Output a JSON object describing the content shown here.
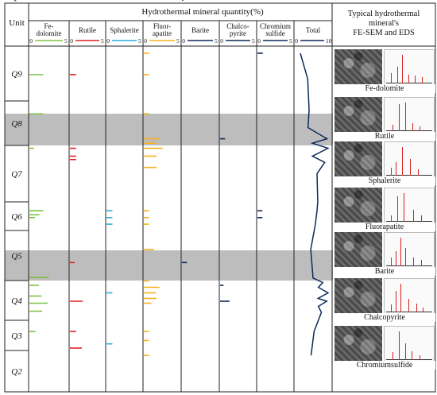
{
  "chart_data": {
    "type": "bar",
    "title": "Hydrothermal mineral quantity(%)",
    "unit_header": "Unit",
    "right_header": [
      "Typical hydrothermal",
      "mineral's",
      "FE-SEM and EDS"
    ],
    "units": [
      "Q9",
      "Q8",
      "Q7",
      "Q6",
      "Q5",
      "Q4",
      "Q3",
      "Q2",
      "Q1"
    ],
    "highlighted_units": [
      "Q8",
      "Q4"
    ],
    "columns": [
      {
        "name": "Fe-dolomite",
        "name_lines": [
          "Fe-",
          "dolomite"
        ],
        "scale": [
          "0",
          "5"
        ],
        "color": "#7dc242",
        "marks": [
          {
            "depth": 0.52,
            "value": 2.5
          },
          {
            "depth": 1.29,
            "value": 2.5
          },
          {
            "depth": 2.05,
            "value": 0.8
          },
          {
            "depth": 3.31,
            "value": 2.5
          },
          {
            "depth": 3.45,
            "value": 1.8
          },
          {
            "depth": 3.55,
            "value": 1.0
          },
          {
            "depth": 4.94,
            "value": 3.5
          },
          {
            "depth": 5.12,
            "value": 1.7
          },
          {
            "depth": 5.39,
            "value": 2.2
          },
          {
            "depth": 5.57,
            "value": 3.3
          },
          {
            "depth": 5.77,
            "value": 2.3
          },
          {
            "depth": 6.37,
            "value": 1.1
          }
        ]
      },
      {
        "name": "Rutile",
        "name_lines": [
          "Rutile"
        ],
        "scale": [
          "0",
          "5"
        ],
        "color": "#e02020",
        "marks": [
          {
            "depth": 0.52,
            "value": 1.3
          },
          {
            "depth": 2.05,
            "value": 1.3
          },
          {
            "depth": 2.19,
            "value": 1.3
          },
          {
            "depth": 2.25,
            "value": 1.3
          },
          {
            "depth": 4.64,
            "value": 1.0
          },
          {
            "depth": 5.52,
            "value": 2.7
          },
          {
            "depth": 6.37,
            "value": 1.3
          },
          {
            "depth": 6.92,
            "value": 2.5
          }
        ]
      },
      {
        "name": "Sphalerite",
        "name_lines": [
          "Sphalerite"
        ],
        "scale": [
          "0",
          "5"
        ],
        "color": "#2aaee0",
        "marks": [
          {
            "depth": 3.31,
            "value": 1.2
          },
          {
            "depth": 3.55,
            "value": 1.2
          },
          {
            "depth": 3.78,
            "value": 1.2
          },
          {
            "depth": 5.31,
            "value": 1.2
          },
          {
            "depth": 6.78,
            "value": 1.2
          }
        ]
      },
      {
        "name": "Fluorapatite",
        "name_lines": [
          "Fluor-",
          "apatite"
        ],
        "scale": [
          "0",
          "5"
        ],
        "color": "#f5b21f",
        "marks": [
          {
            "depth": 0.13,
            "value": 1.0
          },
          {
            "depth": 0.52,
            "value": 1.0
          },
          {
            "depth": 1.29,
            "value": 1.0
          },
          {
            "depth": 1.85,
            "value": 3.0
          },
          {
            "depth": 1.95,
            "value": 2.5
          },
          {
            "depth": 2.05,
            "value": 3.7
          },
          {
            "depth": 2.19,
            "value": 2.5
          },
          {
            "depth": 2.39,
            "value": 2.5
          },
          {
            "depth": 3.31,
            "value": 1.0
          },
          {
            "depth": 3.55,
            "value": 1.0
          },
          {
            "depth": 3.78,
            "value": 1.0
          },
          {
            "depth": 4.38,
            "value": 2.0
          },
          {
            "depth": 5.01,
            "value": 1.0
          },
          {
            "depth": 5.17,
            "value": 3.1
          },
          {
            "depth": 5.31,
            "value": 2.4
          },
          {
            "depth": 5.45,
            "value": 2.5
          },
          {
            "depth": 5.57,
            "value": 1.5
          },
          {
            "depth": 6.37,
            "value": 1.0
          },
          {
            "depth": 6.67,
            "value": 1.0
          },
          {
            "depth": 7.12,
            "value": 1.0
          }
        ]
      },
      {
        "name": "Barite",
        "name_lines": [
          "Barite"
        ],
        "scale": [
          "0",
          "5"
        ],
        "color": "#0c2a5a",
        "marks": [
          {
            "depth": 4.64,
            "value": 1.0
          },
          {
            "depth": 8.83,
            "value": 0.3
          }
        ]
      },
      {
        "name": "Chalcopyrite",
        "name_lines": [
          "Chalco-",
          "pyrite"
        ],
        "scale": [
          "0",
          "5"
        ],
        "color": "#0c2a5a",
        "marks": [
          {
            "depth": 1.85,
            "value": 1.0
          },
          {
            "depth": 5.12,
            "value": 0.7
          },
          {
            "depth": 5.52,
            "value": 1.9
          }
        ]
      },
      {
        "name": "Chromium sulfide",
        "name_lines": [
          "Chromium",
          "sulfide"
        ],
        "scale": [
          "0",
          "5"
        ],
        "color": "#0c2a5a",
        "marks": [
          {
            "depth": 0.13,
            "value": 1.1
          },
          {
            "depth": 3.31,
            "value": 1.0
          },
          {
            "depth": 3.55,
            "value": 1.0
          }
        ]
      }
    ],
    "total": {
      "name": "Total",
      "scale": [
        "0",
        "10"
      ],
      "color": "#0c2a5a",
      "points": [
        {
          "depth": 0.13,
          "value": 1.2
        },
        {
          "depth": 0.6,
          "value": 3.4
        },
        {
          "depth": 1.2,
          "value": 3.8
        },
        {
          "depth": 1.6,
          "value": 3.5
        },
        {
          "depth": 1.85,
          "value": 9.2
        },
        {
          "depth": 1.95,
          "value": 4.8
        },
        {
          "depth": 2.05,
          "value": 9.5
        },
        {
          "depth": 2.19,
          "value": 4.8
        },
        {
          "depth": 2.3,
          "value": 8.5
        },
        {
          "depth": 2.5,
          "value": 6.2
        },
        {
          "depth": 3.0,
          "value": 6.4
        },
        {
          "depth": 3.31,
          "value": 6.2
        },
        {
          "depth": 3.78,
          "value": 5.7
        },
        {
          "depth": 4.38,
          "value": 4.3
        },
        {
          "depth": 4.95,
          "value": 5.0
        },
        {
          "depth": 5.05,
          "value": 7.9
        },
        {
          "depth": 5.17,
          "value": 6.6
        },
        {
          "depth": 5.31,
          "value": 9.5
        },
        {
          "depth": 5.45,
          "value": 6.5
        },
        {
          "depth": 5.52,
          "value": 9.1
        },
        {
          "depth": 5.65,
          "value": 6.6
        },
        {
          "depth": 5.8,
          "value": 7.5
        },
        {
          "depth": 6.37,
          "value": 5.3
        },
        {
          "depth": 7.12,
          "value": 4.4
        },
        {
          "depth": 8.0,
          "value": 2.5
        },
        {
          "depth": 8.45,
          "value": 1.0
        },
        {
          "depth": 8.83,
          "value": 0.8
        }
      ]
    },
    "sem_panels": [
      {
        "mineral": "Fe-dolomite",
        "caption": "Fe-dolomite"
      },
      {
        "mineral": "Rutile",
        "caption": "Rutile"
      },
      {
        "mineral": "Sphalerite",
        "caption": "Sphalerite"
      },
      {
        "mineral": "Fluorapatite",
        "caption": "Fluorapatite"
      },
      {
        "mineral": "Barite",
        "caption": "Barite"
      },
      {
        "mineral": "Chalcopyrite",
        "caption": "Chalcopyrite"
      },
      {
        "mineral": "Chromium sulfide",
        "caption": "Chromiumsulfide"
      }
    ]
  }
}
